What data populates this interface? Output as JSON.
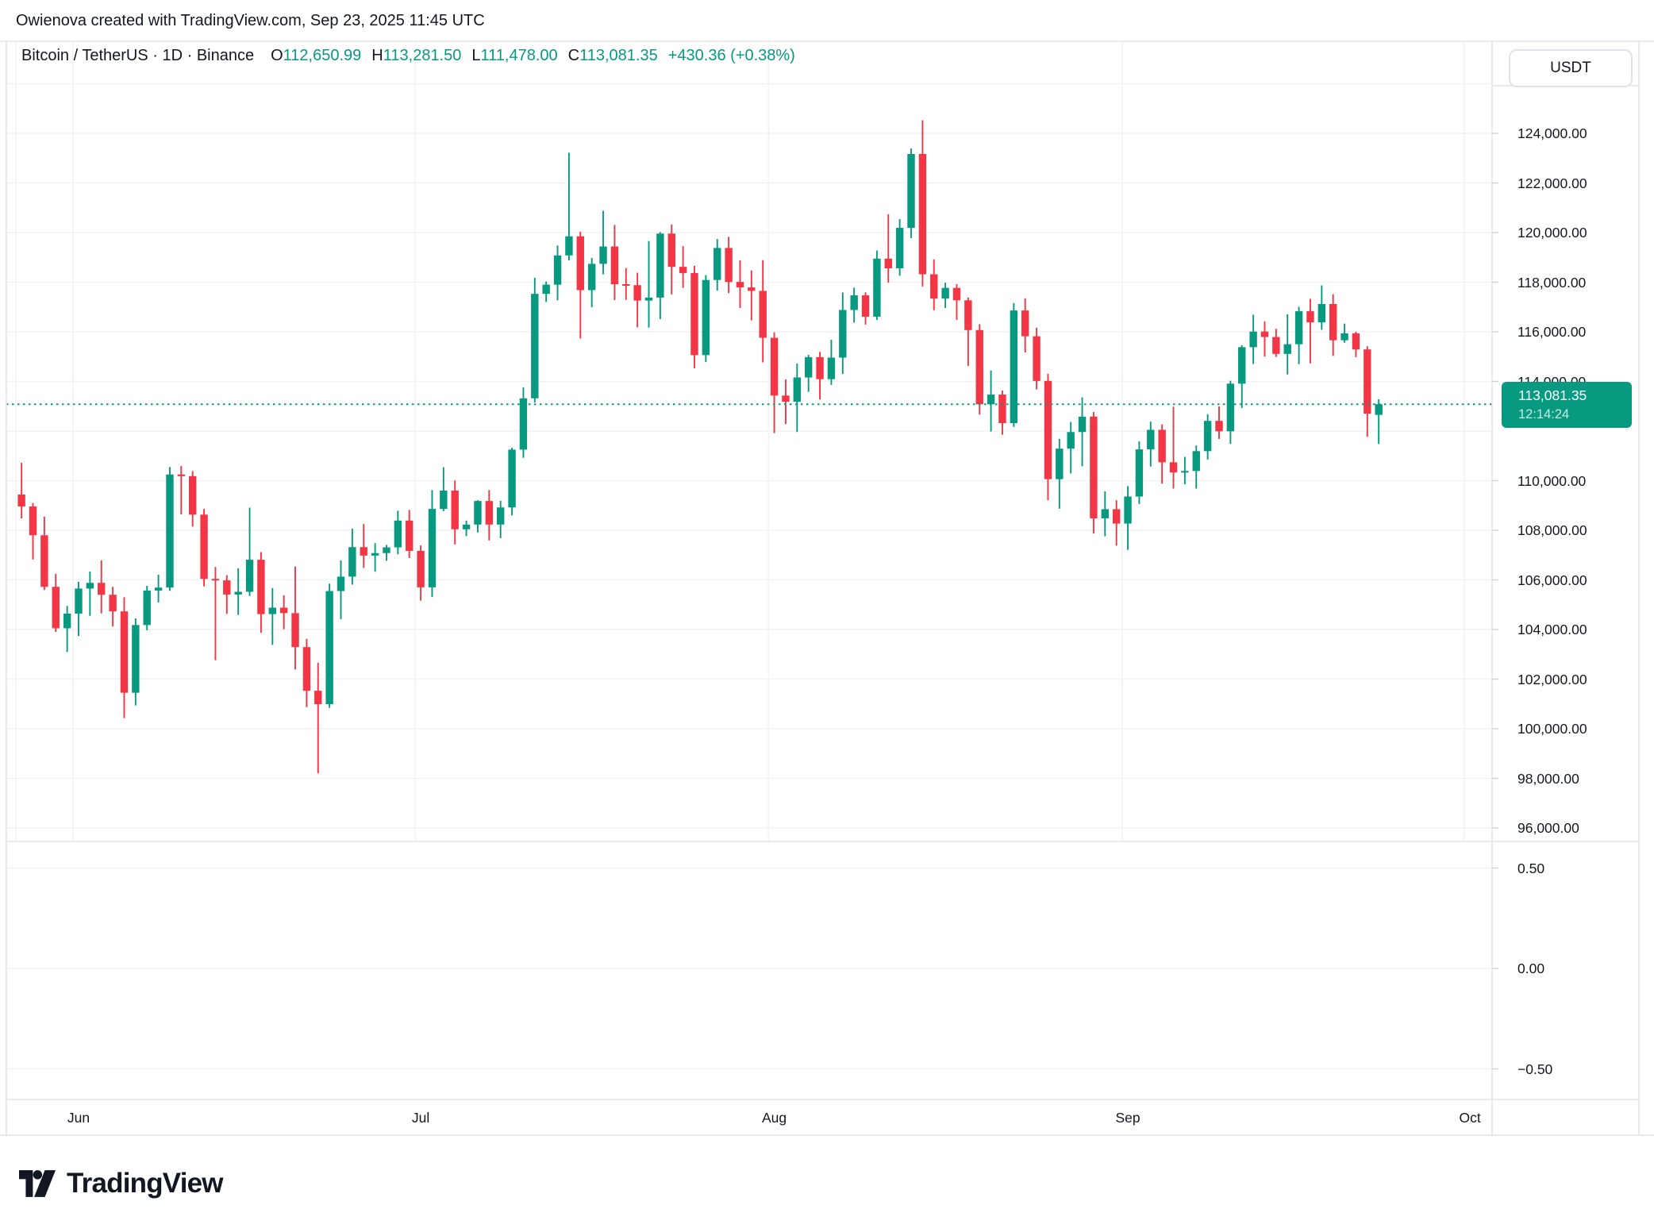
{
  "attribution": "Owienova created with TradingView.com, Sep 23, 2025 11:45 UTC",
  "header": {
    "symbol_title": "Bitcoin / TetherUS · 1D · Binance",
    "ohlc": [
      {
        "label": "O",
        "value": "112,650.99"
      },
      {
        "label": "H",
        "value": "113,281.50"
      },
      {
        "label": "L",
        "value": "111,478.00"
      },
      {
        "label": "C",
        "value": "113,081.35"
      }
    ],
    "change": "+430.36 (+0.38%)"
  },
  "price_axis": {
    "currency_button": "USDT",
    "labels": [
      {
        "text": "124,000.00",
        "value": 124000
      },
      {
        "text": "122,000.00",
        "value": 122000
      },
      {
        "text": "120,000.00",
        "value": 120000
      },
      {
        "text": "118,000.00",
        "value": 118000
      },
      {
        "text": "116,000.00",
        "value": 116000
      },
      {
        "text": "114,000.00",
        "value": 114000
      },
      {
        "text": "110,000.00",
        "value": 110000
      },
      {
        "text": "108,000.00",
        "value": 108000
      },
      {
        "text": "106,000.00",
        "value": 106000
      },
      {
        "text": "104,000.00",
        "value": 104000
      },
      {
        "text": "102,000.00",
        "value": 102000
      },
      {
        "text": "100,000.00",
        "value": 100000
      },
      {
        "text": "98,000.00",
        "value": 98000
      },
      {
        "text": "96,000.00",
        "value": 96000
      }
    ],
    "last_price_label": {
      "price": "113,081.35",
      "countdown": "12:14:24"
    }
  },
  "indicator_axis": {
    "labels": [
      {
        "text": "0.50",
        "value": 0.5
      },
      {
        "text": "0.00",
        "value": 0
      },
      {
        "text": "−0.50",
        "value": -0.5
      }
    ]
  },
  "time_axis": {
    "labels": [
      {
        "text": "Jun",
        "index": 5
      },
      {
        "text": "Jul",
        "index": 35
      },
      {
        "text": "Aug",
        "index": 66
      },
      {
        "text": "Sep",
        "index": 97
      },
      {
        "text": "Oct",
        "index": 127
      }
    ]
  },
  "footer": {
    "brand": "TradingView"
  },
  "colors": {
    "up": "#089981",
    "down": "#F23645",
    "text": "#131722",
    "grid": "#f0f2f6",
    "border": "#e0e3eb",
    "tick": "#d1d4dc",
    "price_line": "#089981",
    "label_bg": "#089981"
  },
  "chart_data": {
    "type": "candlestick",
    "title": "Bitcoin / TetherUS",
    "symbol": "BTCUSDT",
    "interval": "1D",
    "exchange": "Binance",
    "start_date": "May 27, 2025",
    "end_date": "Sep 23, 2025",
    "last_price": 113081.35,
    "price_line_value": 113081.35,
    "ylim_main": [
      95500,
      126500
    ],
    "grid_step": 2000,
    "legend_position": "top-left",
    "grid": true,
    "month_boundaries": [
      -0.5,
      4.5,
      34.5,
      65.5,
      96.5,
      126.5
    ],
    "indicator_pane_gridlines": [
      0.5,
      0,
      -0.5
    ],
    "candles": [
      [
        109440,
        110720,
        108480,
        108960
      ],
      [
        108960,
        109100,
        106820,
        107800
      ],
      [
        107800,
        108550,
        105600,
        105720
      ],
      [
        105720,
        106250,
        103900,
        104050
      ],
      [
        104050,
        104950,
        103090,
        104640
      ],
      [
        104640,
        105920,
        103740,
        105650
      ],
      [
        105650,
        106340,
        104550,
        105880
      ],
      [
        105880,
        106790,
        104650,
        105400
      ],
      [
        105400,
        105720,
        104120,
        104730
      ],
      [
        104730,
        105300,
        100430,
        101450
      ],
      [
        101450,
        104450,
        100940,
        104180
      ],
      [
        104180,
        105760,
        103970,
        105570
      ],
      [
        105570,
        106210,
        105090,
        105690
      ],
      [
        105690,
        110550,
        105560,
        110250
      ],
      [
        110250,
        110590,
        108640,
        110180
      ],
      [
        110180,
        110390,
        108150,
        108630
      ],
      [
        108630,
        108860,
        105740,
        106040
      ],
      [
        106040,
        106520,
        102760,
        105980
      ],
      [
        105980,
        106190,
        104630,
        105410
      ],
      [
        105410,
        106470,
        104590,
        105520
      ],
      [
        105520,
        108910,
        105350,
        106810
      ],
      [
        106810,
        107120,
        103870,
        104620
      ],
      [
        104620,
        105670,
        103380,
        104880
      ],
      [
        104880,
        105380,
        104010,
        104660
      ],
      [
        104660,
        106540,
        102390,
        103290
      ],
      [
        103290,
        103620,
        100870,
        101530
      ],
      [
        101530,
        102660,
        98200,
        100990
      ],
      [
        100990,
        105850,
        100840,
        105550
      ],
      [
        105550,
        106790,
        104420,
        106130
      ],
      [
        106130,
        108070,
        105810,
        107320
      ],
      [
        107320,
        108250,
        106480,
        106980
      ],
      [
        106980,
        107480,
        106330,
        107080
      ],
      [
        107080,
        107410,
        106770,
        107310
      ],
      [
        107310,
        108790,
        107030,
        108390
      ],
      [
        108390,
        108820,
        106880,
        107170
      ],
      [
        107170,
        107390,
        105160,
        105700
      ],
      [
        105700,
        109620,
        105310,
        108860
      ],
      [
        108860,
        110540,
        108770,
        109600
      ],
      [
        109600,
        110010,
        107430,
        108040
      ],
      [
        108040,
        108390,
        107760,
        108230
      ],
      [
        108230,
        109210,
        107910,
        109180
      ],
      [
        109180,
        109620,
        107590,
        108230
      ],
      [
        108230,
        109190,
        107680,
        108920
      ],
      [
        108920,
        111330,
        108600,
        111250
      ],
      [
        111250,
        113760,
        110920,
        113320
      ],
      [
        113320,
        118180,
        113150,
        117530
      ],
      [
        117530,
        118030,
        117200,
        117900
      ],
      [
        117900,
        119480,
        117270,
        119080
      ],
      [
        119080,
        123220,
        118880,
        119850
      ],
      [
        119850,
        120040,
        115730,
        117680
      ],
      [
        117680,
        118980,
        116990,
        118740
      ],
      [
        118740,
        120880,
        118320,
        119440
      ],
      [
        119440,
        120310,
        117280,
        117920
      ],
      [
        117920,
        118570,
        117290,
        117880
      ],
      [
        117880,
        118380,
        116180,
        117260
      ],
      [
        117260,
        119660,
        116170,
        117380
      ],
      [
        117380,
        120020,
        116510,
        119960
      ],
      [
        119960,
        120330,
        117510,
        118620
      ],
      [
        118620,
        119450,
        117770,
        118370
      ],
      [
        118370,
        118660,
        114530,
        115060
      ],
      [
        115060,
        118290,
        114780,
        118090
      ],
      [
        118090,
        119740,
        117660,
        119380
      ],
      [
        119380,
        119830,
        117560,
        118010
      ],
      [
        118010,
        118880,
        116960,
        117790
      ],
      [
        117790,
        118470,
        116460,
        117650
      ],
      [
        117650,
        118890,
        114770,
        115760
      ],
      [
        115760,
        115980,
        111920,
        113430
      ],
      [
        113430,
        114080,
        112280,
        113180
      ],
      [
        113180,
        114720,
        111960,
        114160
      ],
      [
        114160,
        115070,
        113580,
        114980
      ],
      [
        114980,
        115190,
        113270,
        114090
      ],
      [
        114090,
        115680,
        113860,
        114960
      ],
      [
        114960,
        117590,
        114300,
        116880
      ],
      [
        116880,
        117780,
        116370,
        117470
      ],
      [
        117470,
        117590,
        116290,
        116610
      ],
      [
        116610,
        119280,
        116480,
        118950
      ],
      [
        118950,
        120740,
        117980,
        118560
      ],
      [
        118560,
        120540,
        118260,
        120190
      ],
      [
        120190,
        123390,
        119780,
        123170
      ],
      [
        123170,
        124530,
        117830,
        118320
      ],
      [
        118320,
        118920,
        116870,
        117340
      ],
      [
        117340,
        117980,
        116960,
        117770
      ],
      [
        117770,
        117920,
        116480,
        117270
      ],
      [
        117270,
        117380,
        114620,
        116070
      ],
      [
        116070,
        116310,
        112660,
        113080
      ],
      [
        113080,
        114440,
        111980,
        113470
      ],
      [
        113470,
        113630,
        111850,
        112320
      ],
      [
        112320,
        117160,
        112170,
        116860
      ],
      [
        116860,
        117350,
        115170,
        115820
      ],
      [
        115820,
        116160,
        113680,
        114020
      ],
      [
        114020,
        114310,
        109210,
        110060
      ],
      [
        110060,
        111680,
        108870,
        111290
      ],
      [
        111290,
        112370,
        110290,
        111960
      ],
      [
        111960,
        113360,
        110580,
        112580
      ],
      [
        112580,
        112770,
        107870,
        108480
      ],
      [
        108480,
        109570,
        107760,
        108850
      ],
      [
        108850,
        109210,
        107380,
        108270
      ],
      [
        108270,
        109780,
        107210,
        109360
      ],
      [
        109360,
        111590,
        109060,
        111260
      ],
      [
        111260,
        112380,
        110570,
        112050
      ],
      [
        112050,
        112270,
        109880,
        110740
      ],
      [
        110740,
        112980,
        109680,
        110330
      ],
      [
        110330,
        110960,
        109850,
        110390
      ],
      [
        110390,
        111420,
        109680,
        111190
      ],
      [
        111190,
        112680,
        110850,
        112410
      ],
      [
        112410,
        112990,
        111680,
        111990
      ],
      [
        111990,
        114030,
        111480,
        113910
      ],
      [
        113910,
        115460,
        112930,
        115380
      ],
      [
        115380,
        116690,
        114700,
        116010
      ],
      [
        116010,
        116420,
        115000,
        115790
      ],
      [
        115790,
        116120,
        114990,
        115110
      ],
      [
        115110,
        116710,
        114280,
        115500
      ],
      [
        115500,
        117010,
        114700,
        116830
      ],
      [
        116830,
        117330,
        114730,
        116380
      ],
      [
        116380,
        117870,
        116080,
        117120
      ],
      [
        117120,
        117520,
        115030,
        115660
      ],
      [
        115660,
        116330,
        115560,
        115940
      ],
      [
        115940,
        116010,
        114980,
        115290
      ],
      [
        115290,
        115420,
        111770,
        112700
      ],
      [
        112650.99,
        113281.5,
        111478.0,
        113081.35
      ]
    ]
  }
}
